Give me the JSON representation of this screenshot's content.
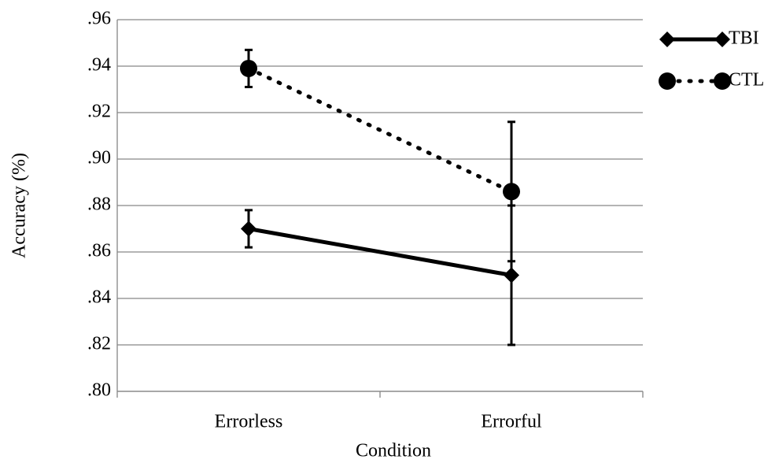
{
  "chart_data": {
    "type": "line",
    "x_label": "Condition",
    "y_label": "Accuracy (%)",
    "categories": [
      "Errorless",
      "Errorful"
    ],
    "series": [
      {
        "name": "TBI",
        "color": "#000000",
        "line_style": "solid",
        "marker": "diamond",
        "values": [
          0.87,
          0.85
        ],
        "errors": [
          0.008,
          0.03
        ]
      },
      {
        "name": "CTL",
        "color": "#000000",
        "line_style": "dotted",
        "marker": "circle",
        "values": [
          0.939,
          0.886
        ],
        "errors": [
          0.008,
          0.03
        ]
      }
    ],
    "ylim": [
      0.8,
      0.96
    ],
    "yticks": [
      {
        "value": 0.8,
        "label": ".80"
      },
      {
        "value": 0.82,
        "label": ".82"
      },
      {
        "value": 0.84,
        "label": ".84"
      },
      {
        "value": 0.86,
        "label": ".86"
      },
      {
        "value": 0.88,
        "label": ".88"
      },
      {
        "value": 0.9,
        "label": ".90"
      },
      {
        "value": 0.92,
        "label": ".92"
      },
      {
        "value": 0.94,
        "label": ".94"
      },
      {
        "value": 0.96,
        "label": ".96"
      }
    ],
    "grid": true,
    "legend": "right"
  }
}
